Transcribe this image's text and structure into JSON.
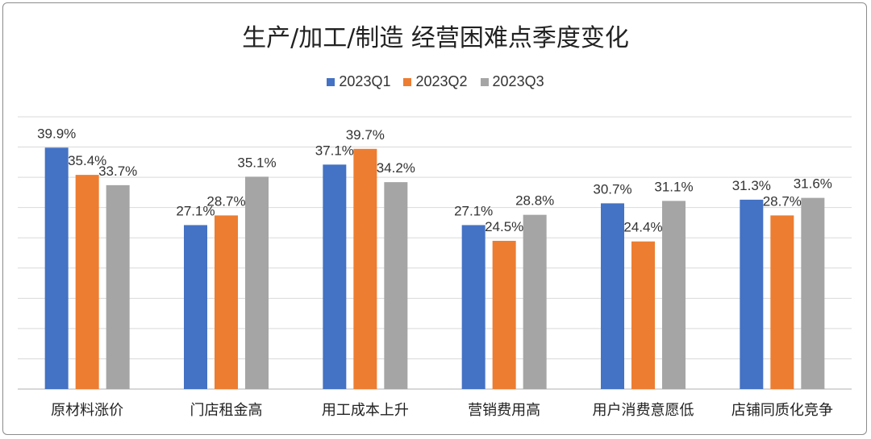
{
  "chart_data": {
    "type": "bar",
    "title": "生产/加工/制造 经营困难点季度变化",
    "xlabel": "",
    "ylabel": "",
    "ylim": [
      0,
      45
    ],
    "grid": true,
    "legend_position": "top",
    "categories": [
      "原材料涨价",
      "门店租金高",
      "用工成本上升",
      "营销费用高",
      "用户消费意愿低",
      "店铺同质化竞争"
    ],
    "series": [
      {
        "name": "2023Q1",
        "color": "#4472C4",
        "values": [
          39.9,
          27.1,
          37.1,
          27.1,
          30.7,
          31.3
        ]
      },
      {
        "name": "2023Q2",
        "color": "#ED7D31",
        "values": [
          35.4,
          28.7,
          39.7,
          24.5,
          24.4,
          28.7
        ]
      },
      {
        "name": "2023Q3",
        "color": "#A5A5A5",
        "values": [
          33.7,
          35.1,
          34.2,
          28.8,
          31.1,
          31.6
        ]
      }
    ],
    "value_suffix": "%"
  }
}
